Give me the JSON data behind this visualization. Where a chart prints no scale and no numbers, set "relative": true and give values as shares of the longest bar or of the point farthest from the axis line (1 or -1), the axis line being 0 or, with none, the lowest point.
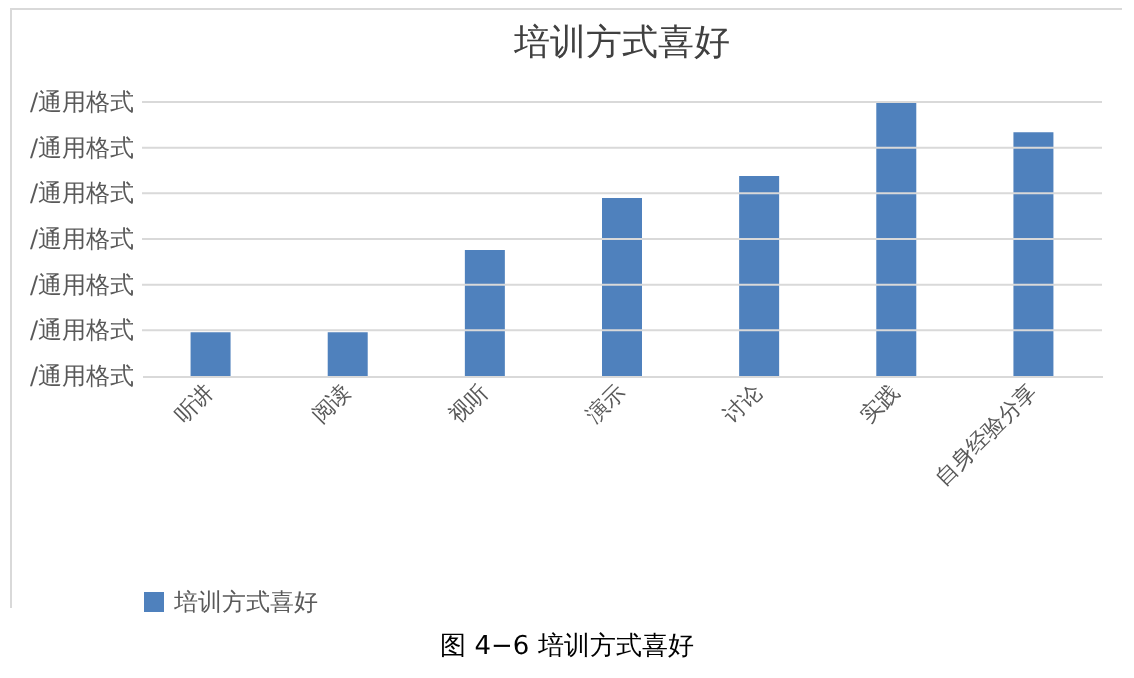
{
  "chart_data": {
    "type": "bar",
    "title": "培训方式喜好",
    "categories": [
      "听讲",
      "阅读",
      "视听",
      "演示",
      "讨论",
      "实践",
      "自身经验分享"
    ],
    "series": [
      {
        "name": "培训方式喜好",
        "color": "#4f81bd",
        "values": [
          0.16,
          0.16,
          0.46,
          0.65,
          0.73,
          1,
          0.89
        ]
      }
    ],
    "relative": true,
    "grid": "y",
    "legend": "bottom",
    "annotations": [
      "/通用格式",
      "/通用格式",
      "/通用格式",
      "/通用格式",
      "/通用格式",
      "/通用格式",
      "/通用格式",
      "图 4−6  培训方式喜好"
    ]
  }
}
